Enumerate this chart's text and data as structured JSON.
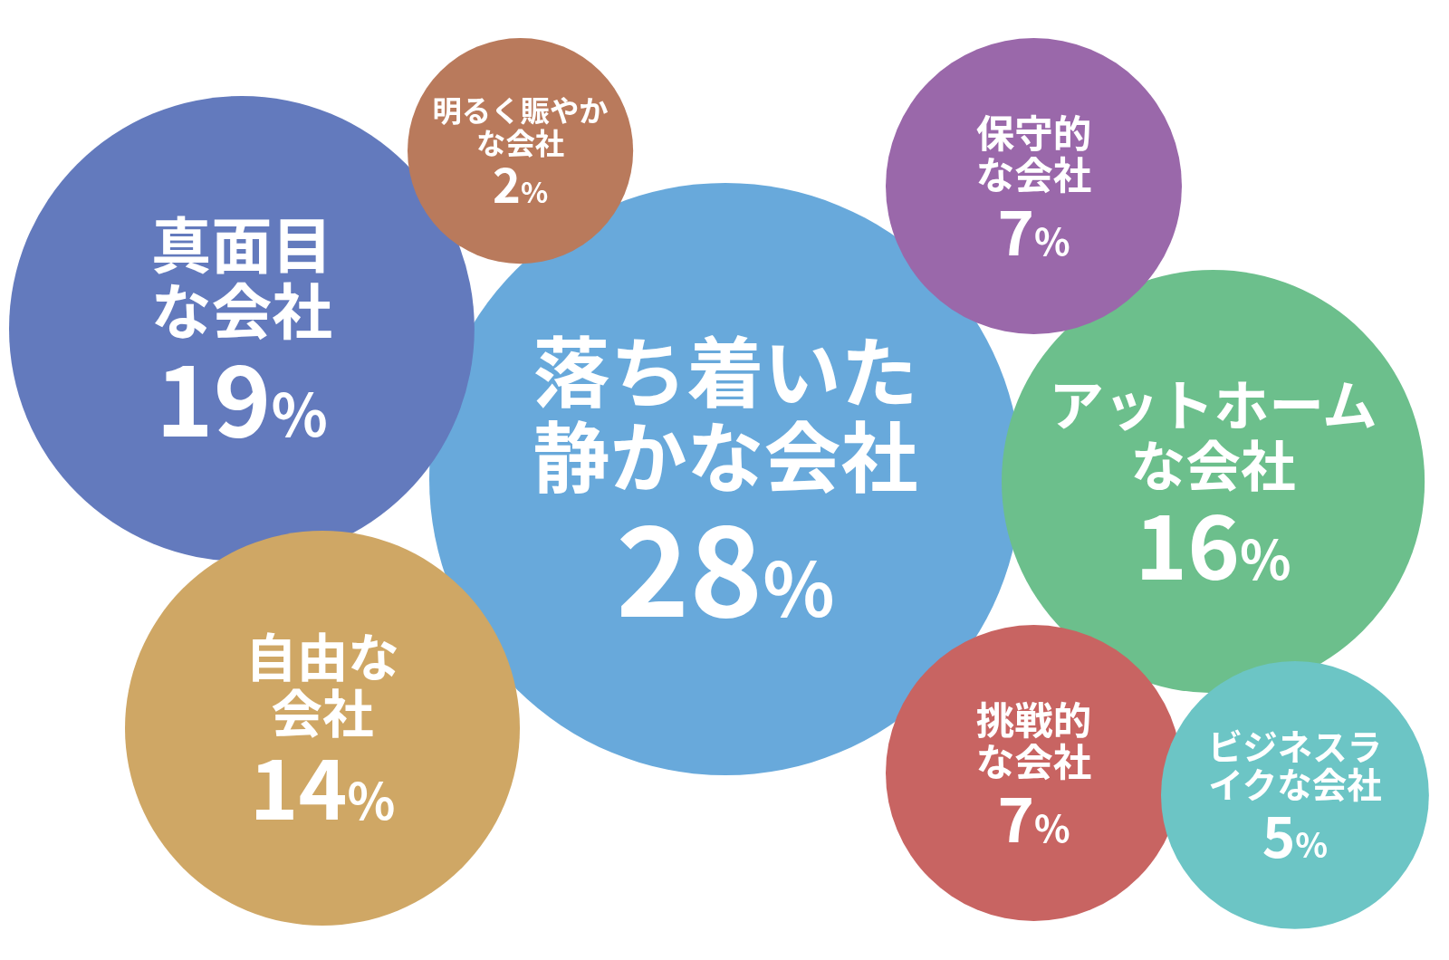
{
  "chart_data": {
    "type": "other",
    "categories": [
      "落ち着いた静かな会社",
      "真面目な会社",
      "アットホームな会社",
      "自由な会社",
      "挑戦的な会社",
      "保守的な会社",
      "ビジネスライクな会社",
      "明るく賑やかな会社"
    ],
    "values": [
      28,
      19,
      16,
      14,
      7,
      7,
      5,
      2
    ],
    "value_labels": [
      "28%",
      "19%",
      "16%",
      "14%",
      "7%",
      "7%",
      "5%",
      "2%"
    ],
    "colors": [
      "#68a9db",
      "#637abd",
      "#6cbf8c",
      "#cfa765",
      "#c86462",
      "#9a68aa",
      "#6cc5c5",
      "#b97a5c"
    ]
  }
}
